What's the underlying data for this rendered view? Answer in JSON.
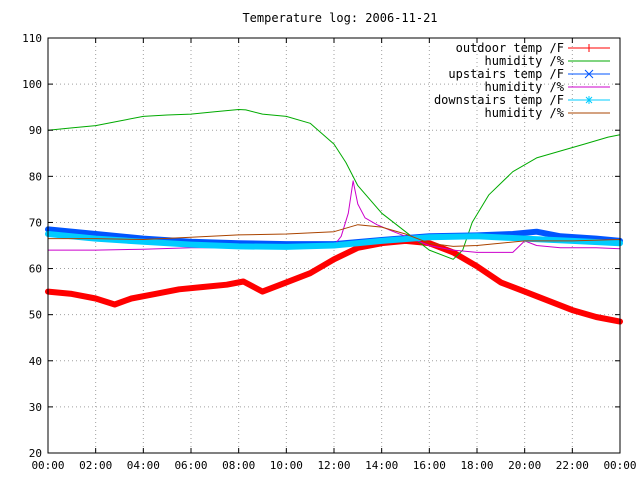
{
  "chart_data": {
    "type": "line",
    "title": "Temperature log: 2006-11-21",
    "xlabel": "",
    "ylabel": "",
    "xlim": [
      0,
      24
    ],
    "ylim": [
      20,
      110
    ],
    "x_ticks": [
      "00:00",
      "02:00",
      "04:00",
      "06:00",
      "08:00",
      "10:00",
      "12:00",
      "14:00",
      "16:00",
      "18:00",
      "20:00",
      "22:00",
      "00:00"
    ],
    "y_ticks": [
      20,
      30,
      40,
      50,
      60,
      70,
      80,
      90,
      100,
      110
    ],
    "grid": true,
    "legend_position": "top-right",
    "series": [
      {
        "name": "outdoor temp /F",
        "color": "#ff0000",
        "marker": "plus",
        "x": [
          0,
          1,
          2,
          2.8,
          3.5,
          4.5,
          5.5,
          6.5,
          7.5,
          8.2,
          9,
          10,
          11,
          12,
          13,
          14,
          15,
          16,
          17,
          18,
          19,
          20,
          21,
          22,
          23,
          24
        ],
        "y": [
          55,
          54.5,
          53.5,
          52.2,
          53.5,
          54.5,
          55.5,
          56,
          56.5,
          57.2,
          55,
          57,
          59,
          62,
          64.5,
          65.5,
          66,
          65.5,
          63.5,
          60.5,
          57,
          55,
          53,
          51,
          49.5,
          48.5
        ]
      },
      {
        "name": "humidity /%",
        "color": "#00aa00",
        "marker": "none",
        "x": [
          0,
          1,
          2,
          3,
          4,
          5,
          6,
          7,
          8,
          8.3,
          9,
          10,
          11,
          12,
          12.5,
          13,
          14,
          15,
          16,
          17,
          17.4,
          17.8,
          18.5,
          19.5,
          20.5,
          21.5,
          22.5,
          23.5,
          24
        ],
        "y": [
          90,
          90.5,
          91,
          92,
          93,
          93.3,
          93.5,
          94,
          94.5,
          94.4,
          93.5,
          93,
          91.5,
          87,
          83,
          78,
          72,
          68,
          64,
          62,
          64,
          70,
          76,
          81,
          84,
          85.5,
          87,
          88.5,
          89
        ]
      },
      {
        "name": "upstairs temp /F",
        "color": "#0055ff",
        "marker": "cross",
        "x": [
          0,
          2,
          4,
          6,
          8,
          10,
          12,
          14,
          16,
          18,
          19.5,
          20.5,
          21.5,
          23,
          24
        ],
        "y": [
          68.5,
          67.5,
          66.5,
          65.8,
          65.5,
          65.3,
          65.3,
          66.2,
          67,
          67.2,
          67.5,
          68,
          67,
          66.5,
          66
        ]
      },
      {
        "name": "humidity /%",
        "color": "#cc00cc",
        "marker": "none",
        "x": [
          0,
          2,
          4,
          6,
          8,
          10,
          12,
          12.3,
          12.6,
          12.8,
          13,
          13.3,
          13.8,
          14.5,
          15,
          16,
          17,
          18,
          19.5,
          20,
          20.5,
          21.5,
          23,
          24
        ],
        "y": [
          64,
          64,
          64.2,
          64.5,
          64.5,
          64.8,
          65,
          67,
          72,
          79,
          74,
          71,
          69.5,
          68,
          67,
          65,
          64,
          63.5,
          63.5,
          66,
          65,
          64.5,
          64.5,
          64.3
        ]
      },
      {
        "name": "downstairs temp /F",
        "color": "#00ccff",
        "marker": "star",
        "x": [
          0,
          2,
          4,
          6,
          8,
          10,
          12,
          14,
          16,
          18,
          20,
          22,
          24
        ],
        "y": [
          67.5,
          66.5,
          65.8,
          65.2,
          64.8,
          64.7,
          65,
          66,
          66.8,
          67,
          66.5,
          66,
          65.5
        ]
      },
      {
        "name": "humidity /%",
        "color": "#aa4400",
        "marker": "none",
        "x": [
          0,
          2,
          4,
          6,
          8,
          10,
          12,
          13,
          14,
          15,
          16,
          17,
          18,
          20,
          22,
          24
        ],
        "y": [
          66.5,
          66.5,
          66.3,
          66.8,
          67.3,
          67.5,
          68,
          69.5,
          69,
          67.5,
          65.5,
          64.8,
          65,
          66,
          66,
          66.3
        ]
      }
    ]
  }
}
